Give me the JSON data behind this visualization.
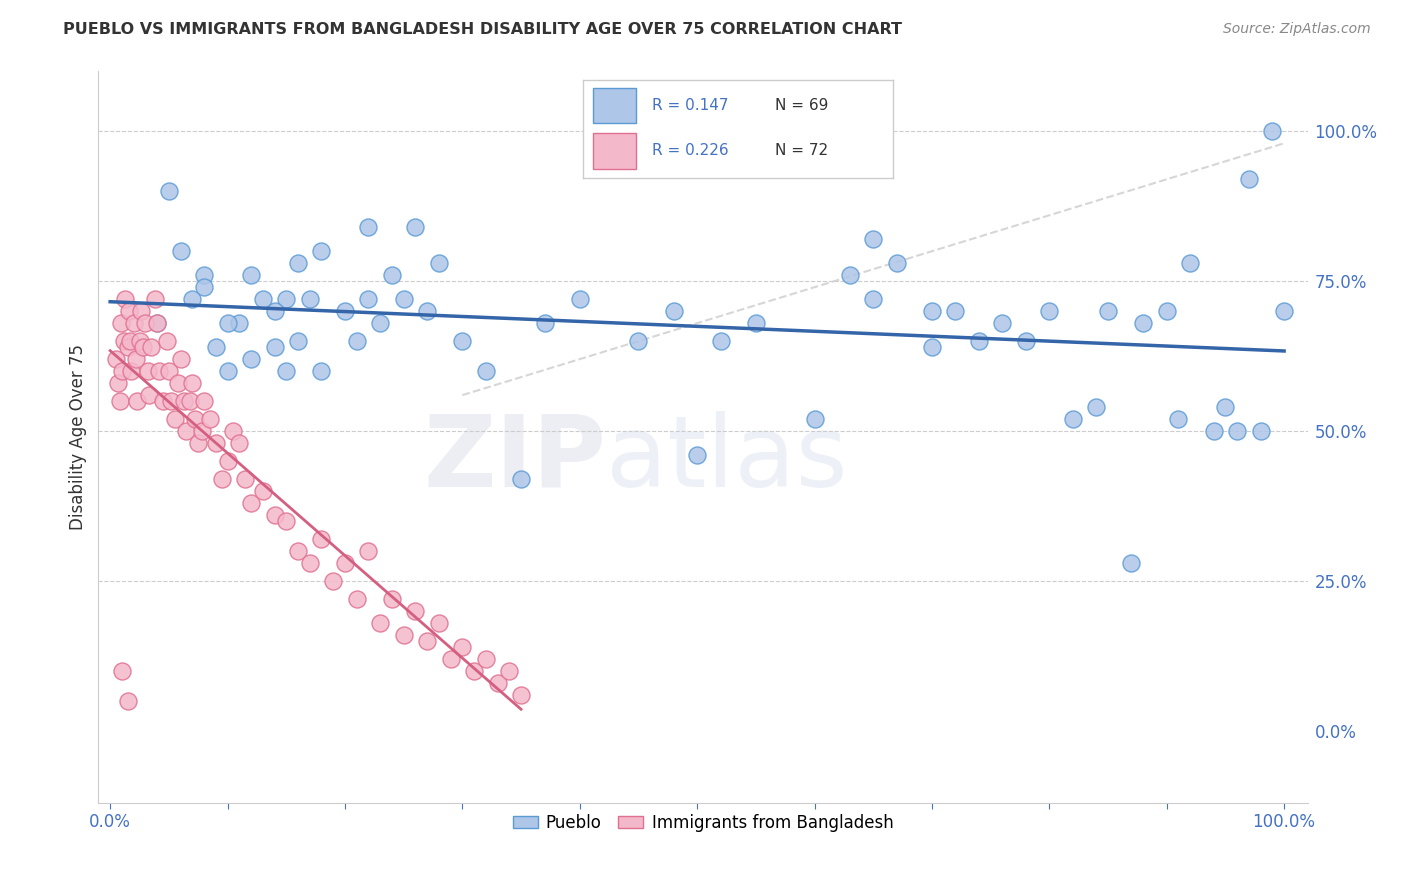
{
  "title": "PUEBLO VS IMMIGRANTS FROM BANGLADESH DISABILITY AGE OVER 75 CORRELATION CHART",
  "source": "Source: ZipAtlas.com",
  "ylabel": "Disability Age Over 75",
  "pueblo_color": "#aec6e8",
  "pueblo_edge": "#5b9bd5",
  "bangladesh_color": "#f4b8cb",
  "bangladesh_edge": "#e07090",
  "trend_blue": "#3465a8",
  "trend_pink": "#d45f80",
  "trend_dashed_color": "#cccccc",
  "legend_r1": "R = 0.147",
  "legend_n1": "N = 69",
  "legend_r2": "R = 0.226",
  "legend_n2": "N = 72",
  "watermark_zip": "ZIP",
  "watermark_atlas": "atlas",
  "pueblo_x": [
    0.04,
    0.05,
    0.06,
    0.07,
    0.08,
    0.09,
    0.1,
    0.11,
    0.12,
    0.13,
    0.14,
    0.15,
    0.15,
    0.16,
    0.17,
    0.18,
    0.2,
    0.21,
    0.22,
    0.23,
    0.24,
    0.25,
    0.27,
    0.3,
    0.32,
    0.35,
    0.37,
    0.4,
    0.45,
    0.5,
    0.52,
    0.55,
    0.6,
    0.63,
    0.65,
    0.67,
    0.7,
    0.72,
    0.74,
    0.76,
    0.78,
    0.8,
    0.82,
    0.84,
    0.85,
    0.87,
    0.88,
    0.9,
    0.91,
    0.92,
    0.94,
    0.95,
    0.96,
    0.97,
    0.98,
    0.99,
    1.0,
    0.08,
    0.1,
    0.12,
    0.14,
    0.16,
    0.18,
    0.22,
    0.26,
    0.28,
    0.48,
    0.65,
    0.7
  ],
  "pueblo_y": [
    0.68,
    0.9,
    0.8,
    0.72,
    0.76,
    0.64,
    0.6,
    0.68,
    0.62,
    0.72,
    0.64,
    0.6,
    0.72,
    0.65,
    0.72,
    0.6,
    0.7,
    0.65,
    0.72,
    0.68,
    0.76,
    0.72,
    0.7,
    0.65,
    0.6,
    0.42,
    0.68,
    0.72,
    0.65,
    0.46,
    0.65,
    0.68,
    0.52,
    0.76,
    0.72,
    0.78,
    0.7,
    0.7,
    0.65,
    0.68,
    0.65,
    0.7,
    0.52,
    0.54,
    0.7,
    0.28,
    0.68,
    0.7,
    0.52,
    0.78,
    0.5,
    0.54,
    0.5,
    0.92,
    0.5,
    1.0,
    0.7,
    0.74,
    0.68,
    0.76,
    0.7,
    0.78,
    0.8,
    0.84,
    0.84,
    0.78,
    0.7,
    0.82,
    0.64
  ],
  "bangladesh_x": [
    0.005,
    0.007,
    0.008,
    0.009,
    0.01,
    0.012,
    0.013,
    0.015,
    0.016,
    0.017,
    0.018,
    0.02,
    0.022,
    0.023,
    0.025,
    0.026,
    0.028,
    0.03,
    0.032,
    0.033,
    0.035,
    0.038,
    0.04,
    0.042,
    0.045,
    0.048,
    0.05,
    0.052,
    0.055,
    0.058,
    0.06,
    0.063,
    0.065,
    0.068,
    0.07,
    0.072,
    0.075,
    0.078,
    0.08,
    0.085,
    0.09,
    0.095,
    0.1,
    0.105,
    0.11,
    0.115,
    0.12,
    0.13,
    0.14,
    0.15,
    0.16,
    0.17,
    0.18,
    0.19,
    0.2,
    0.21,
    0.22,
    0.23,
    0.24,
    0.25,
    0.26,
    0.27,
    0.28,
    0.29,
    0.3,
    0.31,
    0.32,
    0.33,
    0.34,
    0.35,
    0.01,
    0.015
  ],
  "bangladesh_y": [
    0.62,
    0.58,
    0.55,
    0.68,
    0.6,
    0.65,
    0.72,
    0.64,
    0.7,
    0.65,
    0.6,
    0.68,
    0.62,
    0.55,
    0.65,
    0.7,
    0.64,
    0.68,
    0.6,
    0.56,
    0.64,
    0.72,
    0.68,
    0.6,
    0.55,
    0.65,
    0.6,
    0.55,
    0.52,
    0.58,
    0.62,
    0.55,
    0.5,
    0.55,
    0.58,
    0.52,
    0.48,
    0.5,
    0.55,
    0.52,
    0.48,
    0.42,
    0.45,
    0.5,
    0.48,
    0.42,
    0.38,
    0.4,
    0.36,
    0.35,
    0.3,
    0.28,
    0.32,
    0.25,
    0.28,
    0.22,
    0.3,
    0.18,
    0.22,
    0.16,
    0.2,
    0.15,
    0.18,
    0.12,
    0.14,
    0.1,
    0.12,
    0.08,
    0.1,
    0.06,
    0.1,
    0.05
  ],
  "xlim": [
    -0.01,
    1.02
  ],
  "ylim": [
    -0.12,
    1.1
  ],
  "y_ticks": [
    0.0,
    0.25,
    0.5,
    0.75,
    1.0
  ],
  "y_tick_labels": [
    "0.0%",
    "25.0%",
    "50.0%",
    "75.0%",
    "100.0%"
  ],
  "x_ticks": [
    0.0,
    0.1,
    0.2,
    0.3,
    0.4,
    0.5,
    0.6,
    0.7,
    0.8,
    0.9,
    1.0
  ],
  "x_tick_labels_show": [
    "0.0%",
    "",
    "",
    "",
    "",
    "",
    "",
    "",
    "",
    "",
    "100.0%"
  ]
}
